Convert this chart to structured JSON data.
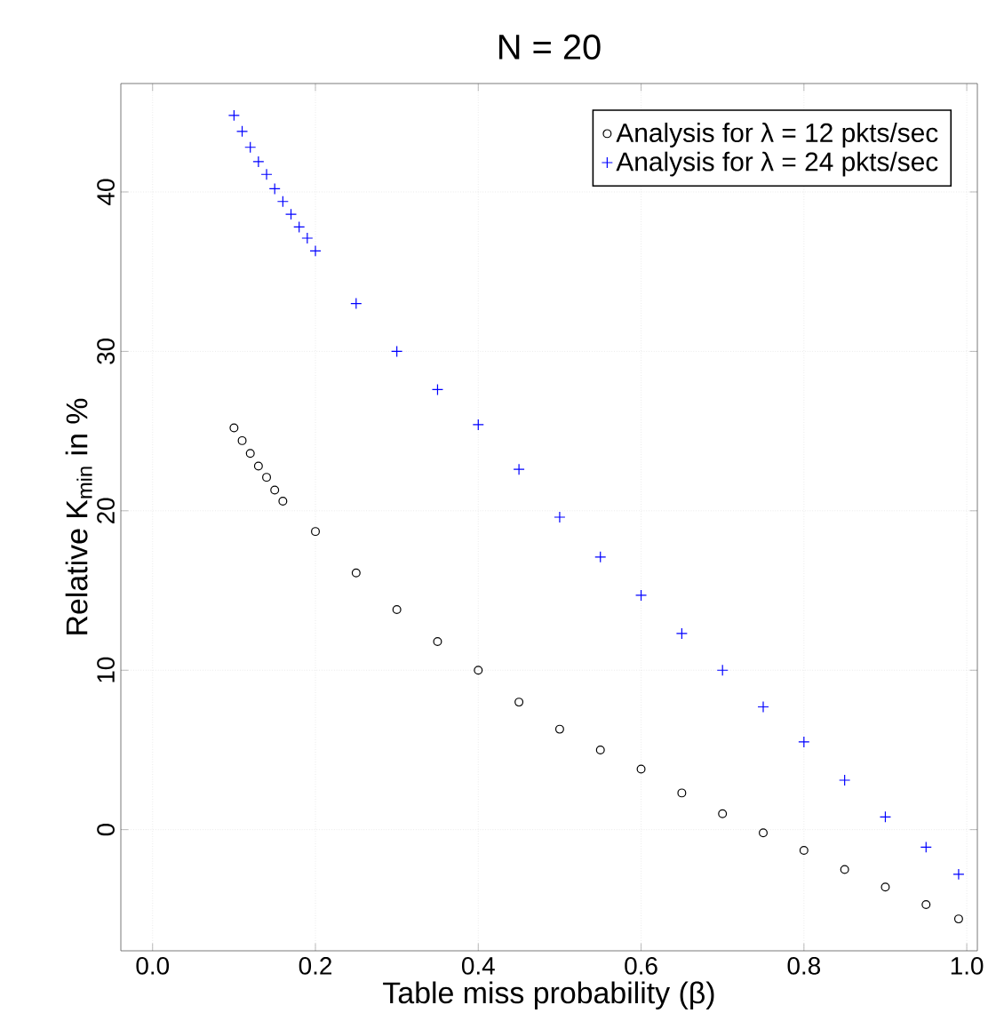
{
  "chart_data": {
    "type": "scatter",
    "title": "N = 20",
    "xlabel": "Table miss probability (β)",
    "ylabel": "Relative K$_{min}$ in %",
    "xlim": [
      -0.039,
      1.013
    ],
    "ylim": [
      -7.6,
      46.8
    ],
    "xticks": [
      {
        "value": 0,
        "label": "0.0"
      },
      0.2,
      0.4,
      0.6,
      0.8,
      {
        "value": 1,
        "label": "1.0"
      }
    ],
    "yticks": [
      0,
      10,
      20,
      30,
      40
    ],
    "grid": true,
    "legend": "top right",
    "series": [
      {
        "name": "Analysis for λ = 12 pkts/sec",
        "color": "#000000",
        "marker": "circle",
        "x": [
          0.1,
          0.11,
          0.12,
          0.13,
          0.14,
          0.15,
          0.16,
          0.2,
          0.25,
          0.3,
          0.35,
          0.4,
          0.45,
          0.5,
          0.55,
          0.6,
          0.65,
          0.7,
          0.75,
          0.8,
          0.85,
          0.9,
          0.95,
          0.99
        ],
        "values": [
          25.2,
          24.4,
          23.6,
          22.8,
          22.1,
          21.3,
          20.6,
          18.7,
          16.1,
          13.8,
          11.8,
          10.0,
          8.0,
          6.3,
          5.0,
          3.8,
          2.3,
          1.0,
          -0.2,
          -1.3,
          -2.5,
          -3.6,
          -4.7,
          -5.6
        ]
      },
      {
        "name": "Analysis for λ = 24 pkts/sec",
        "color": "#0000ff",
        "marker": "cross",
        "x": [
          0.1,
          0.11,
          0.12,
          0.13,
          0.14,
          0.15,
          0.16,
          0.17,
          0.18,
          0.19,
          0.2,
          0.25,
          0.3,
          0.35,
          0.4,
          0.45,
          0.5,
          0.55,
          0.6,
          0.65,
          0.7,
          0.75,
          0.8,
          0.85,
          0.9,
          0.95,
          0.99
        ],
        "values": [
          44.8,
          43.8,
          42.8,
          41.9,
          41.1,
          40.2,
          39.4,
          38.6,
          37.8,
          37.1,
          36.3,
          33.0,
          30.0,
          27.6,
          25.4,
          22.6,
          19.6,
          17.1,
          14.7,
          12.3,
          10.0,
          7.7,
          5.5,
          3.1,
          0.8,
          -1.1,
          -2.8
        ]
      }
    ]
  }
}
